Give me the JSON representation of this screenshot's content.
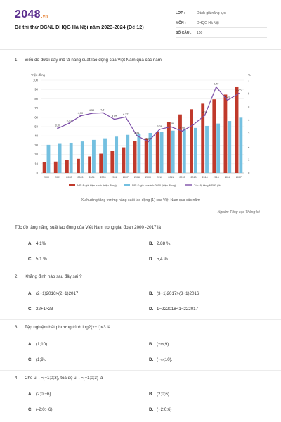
{
  "header": {
    "logo_main": "2048",
    "logo_sub": ".vn",
    "title": "Đề thi thử ĐGNL ĐHQG Hà Nội năm 2023-2024 (Đề 12)",
    "meta": [
      {
        "key": "LỚP :",
        "value": "Đánh giá năng lực"
      },
      {
        "key": "MÔN :",
        "value": "ĐHQG Hà Nội"
      },
      {
        "key": "SỐ CÂU :",
        "value": "150"
      }
    ]
  },
  "questions": [
    {
      "number": "1.",
      "text": "Biểu đồ dưới đây mô tả năng suất lao động của Việt Nam qua các năm",
      "caption": "Xu hướng tăng trưởng năng suất lao động (1) của Việt Nam qua các năm",
      "source": "Nguồn: Tổng cục Thống kê",
      "prompt": "Tốc độ tăng năng suất lao động của Việt Nam trong giai đoạn 2000 -2017 là",
      "options": [
        {
          "letter": "A.",
          "text": "4,1%"
        },
        {
          "letter": "B.",
          "text": "2,88 %."
        },
        {
          "letter": "C.",
          "text": "5,1 %"
        },
        {
          "letter": "D.",
          "text": "5,4 %"
        }
      ]
    },
    {
      "number": "2.",
      "text": "Khẳng định nào sau đây sai ?",
      "options": [
        {
          "letter": "A.",
          "text": "(2−1)2016>(2−1)2017"
        },
        {
          "letter": "B.",
          "text": "(3−1)2017>(3−1)2016"
        },
        {
          "letter": "C.",
          "text": "22+1>23"
        },
        {
          "letter": "D.",
          "text": "1−222018<1−222017"
        }
      ]
    },
    {
      "number": "3.",
      "text": "Tập nghiệm bất phương trình log2(x−1)<3 là",
      "options": [
        {
          "letter": "A.",
          "text": "(1;10)."
        },
        {
          "letter": "B.",
          "text": "(−∞;9)."
        },
        {
          "letter": "C.",
          "text": "(1;9)."
        },
        {
          "letter": "D.",
          "text": "(−∞;10)."
        }
      ]
    },
    {
      "number": "4.",
      "text": "Cho u→=(−1;0;3), tọa độ u→=(−1;0;3) là",
      "options": [
        {
          "letter": "A.",
          "text": "(2;0;−6)"
        },
        {
          "letter": "B.",
          "text": "(2;0;6)"
        },
        {
          "letter": "C.",
          "text": "(-2;0;−6)"
        },
        {
          "letter": "D.",
          "text": "(−2;0;6)"
        }
      ]
    }
  ],
  "chart_data": {
    "type": "bar",
    "ylabel": "Triệu đồng",
    "y2label": "%",
    "ylim": [
      0,
      100
    ],
    "y2lim": [
      0,
      7
    ],
    "yticks": [
      0,
      10,
      20,
      30,
      40,
      50,
      60,
      70,
      80,
      90,
      100
    ],
    "y2ticks": [
      0,
      1,
      2,
      3,
      4,
      5,
      6,
      7
    ],
    "categories": [
      "2000",
      "2001",
      "2002",
      "2003",
      "2004",
      "2005",
      "2006",
      "2007",
      "2008",
      "2009",
      "2010",
      "2011",
      "2012",
      "2013",
      "2014",
      "2015",
      "2016",
      "2017"
    ],
    "series": [
      {
        "name": "NSLĐ giá hiện hành (triệu đồng)",
        "color": "#c0392b",
        "kind": "bar",
        "values": [
          11.4,
          12.3,
          13.7,
          15.3,
          17.8,
          20.8,
          23.9,
          27.6,
          34.3,
          37.4,
          44.0,
          55.2,
          63.1,
          68.7,
          74.7,
          79.4,
          84.5,
          93.2
        ]
      },
      {
        "name": "NSLĐ giá so sánh 2010 (triệu đồng)",
        "color": "#74c0e0",
        "kind": "bar",
        "values": [
          30.4,
          31.4,
          32.6,
          34.0,
          35.7,
          37.4,
          39.2,
          41.1,
          42.3,
          43.2,
          44.0,
          45.7,
          47.1,
          48.6,
          50.8,
          53.3,
          56.0,
          59.6
        ]
      },
      {
        "name": "Tốc độ tăng NSLĐ (%)",
        "color": "#7d4fa8",
        "kind": "line",
        "values": [
          null,
          3.37,
          3.75,
          4.3,
          4.5,
          4.54,
          4.05,
          4.22,
          2.81,
          2.37,
          3.29,
          3.49,
          3.16,
          3.65,
          4.36,
          6.49,
          5.49,
          6.0
        ]
      }
    ],
    "data_labels": [
      {
        "index": 1,
        "text": "3,37"
      },
      {
        "index": 2,
        "text": "3,75"
      },
      {
        "index": 3,
        "text": "4,30"
      },
      {
        "index": 4,
        "text": "4,50"
      },
      {
        "index": 5,
        "text": "4,54"
      },
      {
        "index": 6,
        "text": "4,05"
      },
      {
        "index": 7,
        "text": "4,22"
      },
      {
        "index": 8,
        "text": "2,81"
      },
      {
        "index": 9,
        "text": "2,37"
      },
      {
        "index": 10,
        "text": "3,29"
      },
      {
        "index": 11,
        "text": "3,49"
      },
      {
        "index": 12,
        "text": "3,16"
      },
      {
        "index": 14,
        "text": "4,36"
      },
      {
        "index": 15,
        "text": "6,49"
      },
      {
        "index": 16,
        "text": "5,49"
      },
      {
        "index": 17,
        "text": "6,00"
      }
    ],
    "legend_position": "bottom"
  }
}
